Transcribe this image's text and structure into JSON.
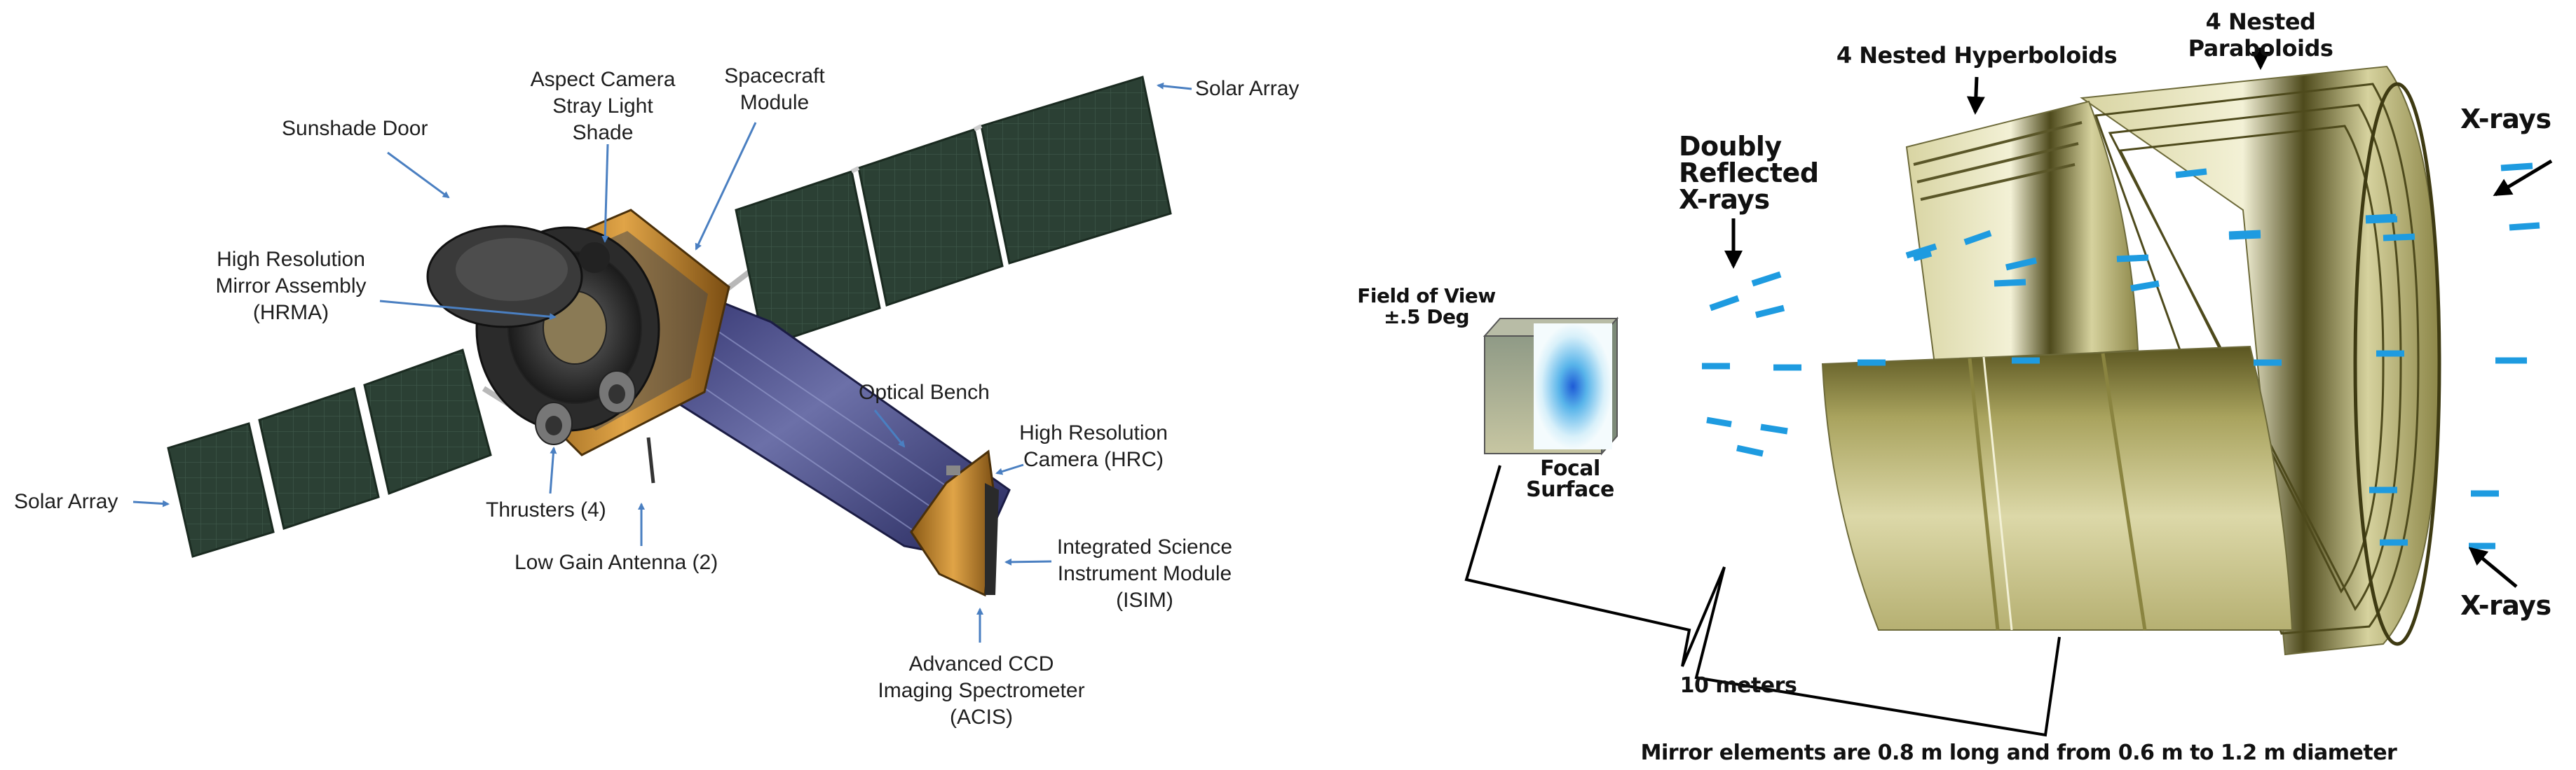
{
  "left_diagram": {
    "labels": {
      "aspect_camera": "Aspect Camera\nStray Light\nShade",
      "spacecraft_module": "Spacecraft\nModule",
      "solar_array_top": "Solar Array",
      "sunshade_door": "Sunshade Door",
      "hrma": "High Resolution\nMirror Assembly\n(HRMA)",
      "optical_bench": "Optical Bench",
      "hrc": "High Resolution\nCamera (HRC)",
      "solar_array_left": "Solar Array",
      "thrusters": "Thrusters (4)",
      "low_gain_antenna": "Low Gain Antenna (2)",
      "isim": "Integrated Science\nInstrument Module\n(ISIM)",
      "acis": "Advanced CCD\nImaging Spectrometer\n(ACIS)"
    },
    "colors": {
      "arrow": "#4a7fc1",
      "panel": "#2a3f33",
      "tube": "#3c3f7a",
      "foil": "#c8862a"
    }
  },
  "right_diagram": {
    "labels": {
      "paraboloids": "4 Nested Paraboloids",
      "hyperboloids": "4 Nested Hyperboloids",
      "doubly_reflected": "Doubly\nReflected\nX-rays",
      "xrays_top": "X-rays",
      "xrays_bottom": "X-rays",
      "field_of_view": "Field of View\n±.5 Deg",
      "focal_surface": "Focal\nSurface",
      "distance": "10 meters",
      "caption": "Mirror elements are 0.8 m long and from 0.6 m to 1.2 m diameter"
    },
    "colors": {
      "ray": "#1e9be0",
      "mirror": "#c7c38a",
      "mirror_dark": "#5f5a24"
    }
  }
}
